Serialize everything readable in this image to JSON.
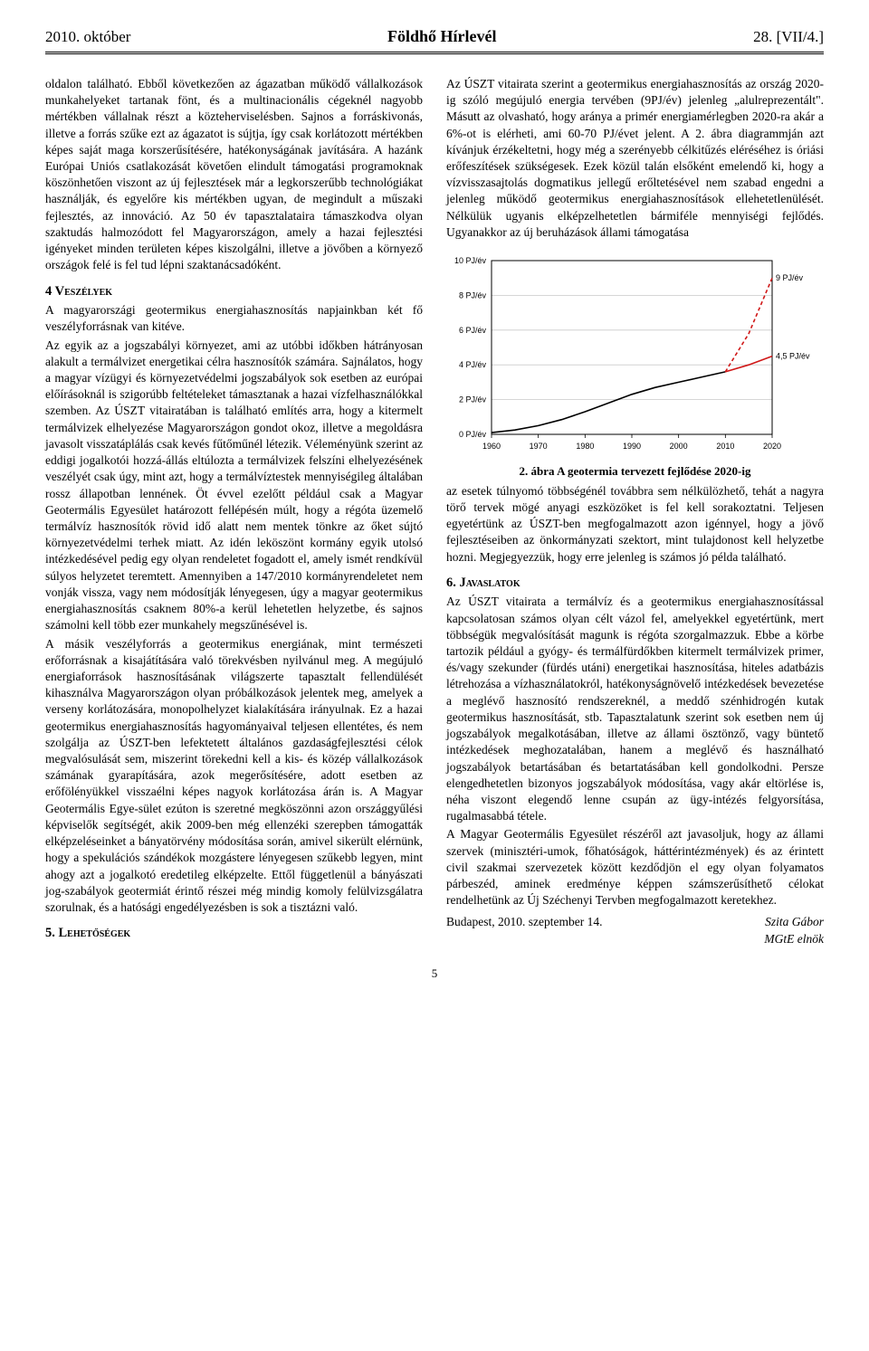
{
  "header": {
    "left": "2010. október",
    "center": "Földhő Hírlevél",
    "right": "28. [VII/4.]"
  },
  "body": {
    "p1": "oldalon található. Ebből következően az ágazatban működő vállalkozások munkahelyeket tartanak fönt, és a multinacionális cégeknél nagyobb mértékben vállalnak részt a közteherviselésben. Sajnos a forráskivonás, illetve a forrás szűke ezt az ágazatot is sújtja, így csak korlátozott mértékben képes saját maga korszerűsítésére, hatékonyságának javítására. A hazánk Európai Uniós csatlakozását követően elindult támogatási programoknak köszönhetően viszont az új fejlesztések már a legkorszerűbb technológiákat használják, és egyelőre kis mértékben ugyan, de megindult a műszaki fejlesztés, az innováció. Az 50 év tapasztalataira támaszkodva olyan szaktudás halmozódott fel Magyarországon, amely a hazai fejlesztési igényeket minden területen képes kiszolgálni, illetve a jövőben a környező országok felé is fel tud lépni szaktanácsadóként.",
    "h4": "4 Veszélyek",
    "p2": "A magyarországi geotermikus energiahasznosítás napjainkban két fő veszélyforrásnak van kitéve.",
    "p3": "Az egyik az a jogszabályi környezet, ami az utóbbi időkben hátrányosan alakult a termálvizet energetikai célra hasznosítók számára. Sajnálatos, hogy a magyar vízügyi és környezetvédelmi jogszabályok sok esetben az európai előírásoknál is szigorúbb feltételeket támasztanak a hazai vízfelhasználókkal szemben. Az ÚSZT vitairatában is található említés arra, hogy a kitermelt termálvizek elhelyezése Magyarországon gondot okoz, illetve a megoldásra javasolt visszatáplálás csak kevés fűtőműnél létezik. Véleményünk szerint az eddigi jogalkotói hozzá-állás eltúlozta a termálvizek felszíni elhelyezésének veszélyét csak úgy, mint azt, hogy a termálvíztestek mennyiségileg általában rossz állapotban lennének. Öt évvel ezelőtt például csak a Magyar Geotermális Egyesület határozott fellépésén múlt, hogy a régóta üzemelő termálvíz hasznosítók rövid idő alatt nem mentek tönkre az őket sújtó környezetvédelmi terhek miatt. Az idén leköszönt kormány egyik utolsó intézkedésével pedig egy olyan rendeletet fogadott el, amely ismét rendkívül súlyos helyzetet teremtett. Amennyiben a 147/2010 kormányrendeletet nem vonják vissza, vagy nem módosítják lényegesen, úgy a magyar geotermikus energiahasznosítás csaknem 80%-a kerül lehetetlen helyzetbe, és sajnos számolni kell több ezer munkahely megszűnésével is.",
    "p4": "A másik veszélyforrás a geotermikus energiának, mint természeti erőforrásnak a kisajátítására való törekvésben nyilvánul meg. A megújuló energiaforrások hasznosításának világszerte tapasztalt fellendülését kihasználva Magyarországon olyan próbálkozások jelentek meg, amelyek a verseny korlátozására, monopolhelyzet kialakítására irányulnak. Ez a hazai geotermikus energiahasznosítás hagyományaival teljesen ellentétes, és nem szolgálja az ÚSZT-ben lefektetett általános gazdaságfejlesztési célok megvalósulását sem, miszerint törekedni kell a kis- és közép vállalkozások számának gyarapítására, azok megerősítésére, adott esetben az erőfölényükkel visszaélni képes nagyok korlátozása árán is. A Magyar Geotermális Egye-sület ezúton is szeretné megköszönni azon országgyűlési képviselők segítségét, akik 2009-ben még ellenzéki szerepben támogatták elképzeléseinket a bányatörvény módosítása során, amivel sikerült elérnünk, hogy a spekulációs szándékok mozgástere lényegesen szűkebb legyen, mint ahogy azt a jogalkotó eredetileg elképzelte. Ettől függetlenül a bányászati jog-szabályok geotermiát érintő részei még mindig komoly felülvizsgálatra szorulnak, és a hatósági engedélyezésben is sok a tisztázni való.",
    "h5": "5. Lehetőségek",
    "p5": "Az ÚSZT vitairata szerint a geotermikus energiahasznosítás az ország 2020-ig szóló megújuló energia tervében (9PJ/év) jelenleg „alulreprezentált\". Másutt az olvasható, hogy aránya a primér energiamérlegben 2020-ra akár a 6%-ot is elérheti, ami 60-70 PJ/évet jelent. A 2. ábra diagrammján azt kívánjuk érzékeltetni, hogy még a szerényebb célkitűzés eléréséhez is óriási erőfeszítések szükségesek. Ezek közül talán elsőként emelendő ki, hogy a vízvisszasajtolás dogmatikus jellegű erőltetésével nem szabad engedni a jelenleg működő geotermikus energiahasznosítások ellehetetlenülését. Nélkülük ugyanis elképzelhetetlen bármiféle mennyiségi fejlődés. Ugyanakkor az új beruházások állami támogatása",
    "chart": {
      "type": "line",
      "x_range": [
        1960,
        2020
      ],
      "x_ticks": [
        1960,
        1970,
        1980,
        1990,
        2000,
        2010,
        2020
      ],
      "y_range": [
        0,
        10
      ],
      "y_ticks": [
        0,
        2,
        4,
        6,
        8,
        10
      ],
      "y_tick_labels": [
        "0 PJ/év",
        "2 PJ/év",
        "4 PJ/év",
        "6 PJ/év",
        "8 PJ/év",
        "10 PJ/év"
      ],
      "historical_line": {
        "color": "#000000",
        "width": 1.6,
        "points": [
          [
            1960,
            0.1
          ],
          [
            1965,
            0.25
          ],
          [
            1970,
            0.5
          ],
          [
            1975,
            0.85
          ],
          [
            1980,
            1.3
          ],
          [
            1985,
            1.8
          ],
          [
            1990,
            2.3
          ],
          [
            1995,
            2.7
          ],
          [
            2000,
            3.0
          ],
          [
            2005,
            3.3
          ],
          [
            2010,
            3.6
          ]
        ]
      },
      "projection_lower": {
        "color": "#d01818",
        "width": 1.6,
        "points": [
          [
            2010,
            3.6
          ],
          [
            2015,
            4.0
          ],
          [
            2020,
            4.5
          ]
        ],
        "end_label": "4,5 PJ/év"
      },
      "projection_upper": {
        "color": "#d01818",
        "width": 1.6,
        "dash": "4 3",
        "points": [
          [
            2010,
            3.6
          ],
          [
            2015,
            5.8
          ],
          [
            2020,
            9.0
          ]
        ],
        "end_label": "9 PJ/év"
      },
      "grid_color": "#c9c9c9",
      "background": "#ffffff",
      "font_family": "Arial, sans-serif",
      "tick_fontsize": 9,
      "annotation_fontsize": 9
    },
    "caption": "2. ábra  A geotermia tervezett fejlődése 2020-ig",
    "p6": "az esetek túlnyomó többségénél továbbra sem nélkülözhető, tehát a nagyra törő tervek mögé anyagi eszközöket is fel kell sorakoztatni. Teljesen egyetértünk az ÚSZT-ben megfogalmazott azon igénnyel, hogy a jövő fejlesztéseiben az önkormányzati szektort, mint tulajdonost kell helyzetbe hozni. Megjegyezzük, hogy erre jelenleg is számos jó példa található.",
    "h6": "6. Javaslatok",
    "p7": "Az ÚSZT vitairata a termálvíz és a geotermikus energiahasznosítással kapcsolatosan számos olyan célt vázol fel, amelyekkel egyetértünk, mert többségük megvalósítását magunk is régóta szorgalmazzuk. Ebbe a körbe tartozik például a gyógy- és termálfürdőkben kitermelt termálvizek primer, és/vagy szekunder (fürdés utáni) energetikai hasznosítása, hiteles adatbázis létrehozása a vízhasználatokról, hatékonyságnövelő intézkedések bevezetése a meglévő hasznosító rendszereknél, a meddő szénhidrogén kutak geotermikus hasznosítását, stb. Tapasztalatunk szerint sok esetben nem új jogszabályok megalkotásában, illetve az állami ösztönző, vagy büntető intézkedések meghozatalában, hanem a meglévő és használható jogszabályok betartásában és betartatásában kell gondolkodni. Persze elengedhetetlen bizonyos jogszabályok módosítása, vagy akár eltörlése is, néha viszont elegendő lenne csupán az ügy-intézés felgyorsítása, rugalmasabbá tétele.",
    "p8": "A Magyar Geotermális Egyesület részéről azt javasoljuk, hogy az állami szervek (minisztéri-umok, főhatóságok, háttérintézmények) és az érintett civil szakmai szervezetek között kezdődjön el egy olyan folyamatos párbeszéd, aminek eredménye képpen számszerűsíthető célokat rendelhetünk az Új Széchenyi Tervben megfogalmazott keretekhez.",
    "sig_date": "Budapest, 2010. szeptember 14.",
    "sig_name": "Szita Gábor",
    "sig_title": "MGtE elnök"
  },
  "page_number": "5"
}
